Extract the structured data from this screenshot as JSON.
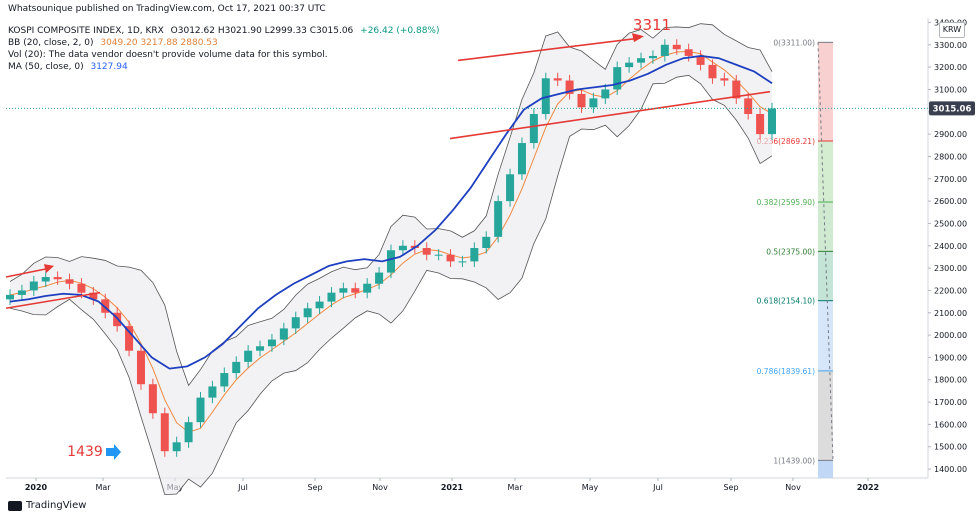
{
  "publisher_line": "Whatsounique published on TradingView.com, Oct 17, 2021 00:37 UTC",
  "symbol": {
    "name": "KOSPI COMPOSITE INDEX, 1D, KRX",
    "ohlc": "O3012.62 H3021.90 L2999.33 C3015.06",
    "change": "+26.42 (+0.88%)"
  },
  "indicators": {
    "bb_label": "BB (20, close, 2, 0)",
    "bb_values": "3049.20 3217.88 2880.53",
    "vol_label": "Vol (20): The data vendor doesn't provide volume data for this symbol.",
    "ma_label": "MA (50, close, 0)",
    "ma_value": "3127.94"
  },
  "currency_label": "KRW",
  "footer_brand": "TradingView",
  "colors": {
    "up": "#26a69a",
    "down": "#ef5350",
    "ma": "#1e3fbf",
    "bb_basis": "#f0883e",
    "bb_band": "#555555",
    "annotation": "#e53935",
    "price_tag": "#3a3f50"
  },
  "chart_data": {
    "type": "candlestick",
    "title": "KOSPI COMPOSITE INDEX, 1D, KRX",
    "y_ticks": [
      3400,
      3300,
      3200,
      3100,
      3000,
      2900,
      2800,
      2700,
      2600,
      2500,
      2400,
      2300,
      2200,
      2100,
      2000,
      1900,
      1800,
      1700,
      1600,
      1500,
      1400
    ],
    "x_tick_labels": [
      "2020",
      "Mar",
      "May",
      "Jul",
      "Sep",
      "Nov",
      "2021",
      "Mar",
      "May",
      "Jul",
      "Sep",
      "Nov",
      "2022"
    ],
    "ylim": [
      1360,
      3420
    ],
    "last_price": "3015.06",
    "series": [
      {
        "name": "KOSPI close",
        "type": "candlestick",
        "approx_close": [
          2180,
          2200,
          2240,
          2260,
          2250,
          2230,
          2190,
          2160,
          2100,
          2040,
          1930,
          1780,
          1650,
          1480,
          1520,
          1610,
          1720,
          1770,
          1830,
          1880,
          1930,
          1950,
          1980,
          2030,
          2080,
          2120,
          2150,
          2190,
          2210,
          2190,
          2230,
          2280,
          2380,
          2400,
          2390,
          2360,
          2360,
          2330,
          2330,
          2390,
          2440,
          2600,
          2720,
          2860,
          2990,
          3150,
          3140,
          3080,
          3020,
          3060,
          3100,
          3200,
          3220,
          3240,
          3250,
          3300,
          3280,
          3250,
          3210,
          3150,
          3140,
          3060,
          2990,
          2900,
          3015
        ]
      },
      {
        "name": "MA (50)",
        "approx_values": [
          2150,
          2160,
          2175,
          2185,
          2180,
          2150,
          2080,
          1990,
          1900,
          1850,
          1860,
          1900,
          1960,
          2040,
          2120,
          2180,
          2230,
          2270,
          2310,
          2330,
          2340,
          2330,
          2350,
          2400,
          2470,
          2560,
          2660,
          2780,
          2900,
          3010,
          3060,
          3080,
          3100,
          3110,
          3120,
          3140,
          3170,
          3210,
          3240,
          3250,
          3240,
          3210,
          3180,
          3128
        ]
      }
    ],
    "annotations": [
      {
        "text": "3311",
        "kind": "peak-label"
      },
      {
        "text": "1439",
        "kind": "trough-label"
      }
    ],
    "fibonacci_levels": [
      {
        "ratio": "0",
        "value": "3311.00",
        "label": "0(3311.00)",
        "color": "#787b86"
      },
      {
        "ratio": "0.236",
        "value": "2869.21",
        "label": "0.236(2869.21)",
        "color": "#e53935"
      },
      {
        "ratio": "0.382",
        "value": "2595.90",
        "label": "0.382(2595.90)",
        "color": "#4caf50"
      },
      {
        "ratio": "0.5",
        "value": "2375.00",
        "label": "0.5(2375.00)",
        "color": "#2e7d32"
      },
      {
        "ratio": "0.618",
        "value": "2154.10",
        "label": "0.618(2154.10)",
        "color": "#00796b"
      },
      {
        "ratio": "0.786",
        "value": "1839.61",
        "label": "0.786(1839.61)",
        "color": "#42a5f5"
      },
      {
        "ratio": "1",
        "value": "1439.00",
        "label": "1(1439.00)",
        "color": "#787b86"
      }
    ]
  }
}
